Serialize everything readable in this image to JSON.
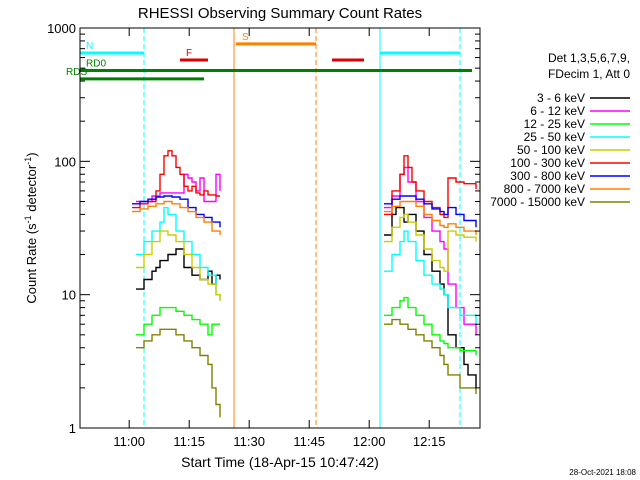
{
  "chart_data": {
    "type": "line",
    "title": "RHESSI Observing Summary Count Rates",
    "xlabel": "Start Time (18-Apr-15 10:47:42)",
    "ylabel": "Count Rate (s",
    "ylabel_sup1": "-1",
    "ylabel_mid": " detector",
    "ylabel_sup2": "-1",
    "ylabel_end": ")",
    "yscale": "log",
    "xlim_minutes": [
      0,
      100
    ],
    "ylim": [
      1,
      1000
    ],
    "xticks": [
      {
        "value": 12.3,
        "label": "11:00"
      },
      {
        "value": 27.3,
        "label": "11:15"
      },
      {
        "value": 42.3,
        "label": "11:30"
      },
      {
        "value": 57.3,
        "label": "11:45"
      },
      {
        "value": 72.3,
        "label": "12:00"
      },
      {
        "value": 87.3,
        "label": "12:15"
      }
    ],
    "yticks": [
      {
        "value": 1,
        "label": "1"
      },
      {
        "value": 10,
        "label": "10"
      },
      {
        "value": 100,
        "label": "100"
      },
      {
        "value": 1000,
        "label": "1000"
      }
    ],
    "legend_position": "right",
    "legend_header": [
      "Det 1,3,5,6,7,9,",
      "FDecim 1, Att 0"
    ],
    "series": [
      {
        "name": "3 - 6 keV",
        "color": "#000000",
        "seg1": [
          [
            14,
            11
          ],
          [
            16,
            13
          ],
          [
            18,
            15
          ],
          [
            19,
            16
          ],
          [
            20,
            18
          ],
          [
            22,
            20
          ],
          [
            24,
            22
          ],
          [
            26,
            16
          ],
          [
            28,
            14
          ],
          [
            30,
            13
          ],
          [
            32,
            15
          ],
          [
            33,
            12
          ],
          [
            34,
            14
          ],
          [
            35,
            13
          ]
        ],
        "seg2": [
          [
            76,
            28
          ],
          [
            78,
            40
          ],
          [
            79,
            45
          ],
          [
            80,
            45
          ],
          [
            81,
            35
          ],
          [
            82,
            40
          ],
          [
            84,
            30
          ],
          [
            86,
            20
          ],
          [
            88,
            15
          ],
          [
            90,
            12
          ],
          [
            91,
            10
          ],
          [
            92,
            5
          ],
          [
            94,
            4
          ],
          [
            96,
            3
          ],
          [
            97,
            2.5
          ],
          [
            99,
            2
          ]
        ]
      },
      {
        "name": "6 - 12 keV",
        "color": "#ff00ff",
        "seg1": [
          [
            14,
            50
          ],
          [
            16,
            50
          ],
          [
            18,
            55
          ],
          [
            20,
            58
          ],
          [
            22,
            58
          ],
          [
            24,
            58
          ],
          [
            26,
            80
          ],
          [
            27,
            75
          ],
          [
            28,
            70
          ],
          [
            29,
            60
          ],
          [
            30,
            75
          ],
          [
            31,
            50
          ],
          [
            32,
            50
          ],
          [
            33,
            50
          ],
          [
            34,
            80
          ],
          [
            35,
            60
          ]
        ],
        "seg2": [
          [
            76,
            45
          ],
          [
            78,
            55
          ],
          [
            80,
            80
          ],
          [
            81,
            90
          ],
          [
            82,
            70
          ],
          [
            84,
            50
          ],
          [
            86,
            38
          ],
          [
            88,
            30
          ],
          [
            90,
            25
          ],
          [
            91,
            22
          ],
          [
            92,
            12
          ],
          [
            94,
            8
          ],
          [
            96,
            6
          ],
          [
            99,
            5
          ]
        ]
      },
      {
        "name": "12 - 25 keV",
        "color": "#00ff00",
        "seg1": [
          [
            14,
            5
          ],
          [
            16,
            6
          ],
          [
            18,
            7
          ],
          [
            20,
            8
          ],
          [
            22,
            8
          ],
          [
            24,
            7.5
          ],
          [
            26,
            7
          ],
          [
            28,
            6.5
          ],
          [
            30,
            6
          ],
          [
            32,
            5
          ],
          [
            33,
            6
          ],
          [
            35,
            6
          ]
        ],
        "seg2": [
          [
            76,
            7
          ],
          [
            78,
            8
          ],
          [
            80,
            9
          ],
          [
            81,
            9.5
          ],
          [
            82,
            8
          ],
          [
            84,
            7
          ],
          [
            86,
            6
          ],
          [
            88,
            5
          ],
          [
            90,
            4.5
          ],
          [
            91,
            4.3
          ],
          [
            92,
            4
          ],
          [
            95,
            3.8
          ],
          [
            99,
            3.5
          ]
        ]
      },
      {
        "name": "25 - 50 keV",
        "color": "#00ffff",
        "seg1": [
          [
            14,
            20
          ],
          [
            16,
            25
          ],
          [
            18,
            30
          ],
          [
            20,
            35
          ],
          [
            21,
            45
          ],
          [
            22,
            40
          ],
          [
            24,
            30
          ],
          [
            26,
            25
          ],
          [
            28,
            20
          ],
          [
            30,
            16
          ],
          [
            32,
            14
          ],
          [
            34,
            10
          ],
          [
            35,
            9
          ]
        ],
        "seg2": [
          [
            76,
            15
          ],
          [
            78,
            20
          ],
          [
            80,
            25
          ],
          [
            81,
            30
          ],
          [
            82,
            25
          ],
          [
            84,
            18
          ],
          [
            86,
            14
          ],
          [
            88,
            12
          ],
          [
            90,
            11
          ],
          [
            91,
            10
          ],
          [
            92,
            8
          ],
          [
            95,
            7
          ],
          [
            99,
            6
          ]
        ]
      },
      {
        "name": "50 - 100 keV",
        "color": "#cccc00",
        "seg1": [
          [
            14,
            16
          ],
          [
            16,
            20
          ],
          [
            18,
            25
          ],
          [
            20,
            30
          ],
          [
            22,
            28
          ],
          [
            24,
            25
          ],
          [
            26,
            20
          ],
          [
            28,
            16
          ],
          [
            30,
            13
          ],
          [
            32,
            12
          ],
          [
            34,
            10
          ],
          [
            35,
            9
          ]
        ],
        "seg2": [
          [
            76,
            25
          ],
          [
            78,
            32
          ],
          [
            80,
            38
          ],
          [
            81,
            40
          ],
          [
            82,
            35
          ],
          [
            84,
            28
          ],
          [
            86,
            22
          ],
          [
            88,
            18
          ],
          [
            90,
            16
          ],
          [
            91,
            15
          ],
          [
            92,
            30
          ],
          [
            94,
            28
          ],
          [
            96,
            27
          ],
          [
            99,
            25
          ]
        ]
      },
      {
        "name": "100 - 300 keV",
        "color": "#ff0000",
        "seg1": [
          [
            13,
            45
          ],
          [
            15,
            48
          ],
          [
            17,
            50
          ],
          [
            19,
            60
          ],
          [
            20,
            80
          ],
          [
            21,
            110
          ],
          [
            22,
            120
          ],
          [
            23,
            110
          ],
          [
            24,
            90
          ],
          [
            25,
            80
          ],
          [
            26,
            65
          ],
          [
            27,
            60
          ],
          [
            28,
            65
          ],
          [
            29,
            58
          ],
          [
            30,
            56
          ],
          [
            31,
            60
          ],
          [
            32,
            56
          ],
          [
            34,
            55
          ],
          [
            35,
            55
          ]
        ],
        "seg2": [
          [
            76,
            40
          ],
          [
            78,
            60
          ],
          [
            80,
            80
          ],
          [
            81,
            110
          ],
          [
            82,
            90
          ],
          [
            83,
            70
          ],
          [
            84,
            60
          ],
          [
            86,
            50
          ],
          [
            88,
            45
          ],
          [
            90,
            40
          ],
          [
            91,
            38
          ],
          [
            92,
            75
          ],
          [
            94,
            70
          ],
          [
            96,
            68
          ],
          [
            99,
            62
          ]
        ]
      },
      {
        "name": "300 - 800 keV",
        "color": "#0000ff",
        "seg1": [
          [
            13,
            48
          ],
          [
            15,
            50
          ],
          [
            17,
            52
          ],
          [
            19,
            54
          ],
          [
            21,
            55
          ],
          [
            23,
            54
          ],
          [
            25,
            52
          ],
          [
            27,
            45
          ],
          [
            29,
            40
          ],
          [
            31,
            38
          ],
          [
            33,
            35
          ],
          [
            35,
            32
          ]
        ],
        "seg2": [
          [
            76,
            48
          ],
          [
            78,
            52
          ],
          [
            80,
            55
          ],
          [
            82,
            55
          ],
          [
            84,
            52
          ],
          [
            86,
            48
          ],
          [
            88,
            44
          ],
          [
            90,
            42
          ],
          [
            91,
            40
          ],
          [
            92,
            45
          ],
          [
            94,
            40
          ],
          [
            96,
            36
          ],
          [
            99,
            32
          ]
        ]
      },
      {
        "name": "800 - 7000 keV",
        "color": "#ff8000",
        "seg1": [
          [
            13,
            42
          ],
          [
            15,
            44
          ],
          [
            17,
            46
          ],
          [
            19,
            48
          ],
          [
            21,
            50
          ],
          [
            23,
            48
          ],
          [
            25,
            45
          ],
          [
            27,
            42
          ],
          [
            29,
            38
          ],
          [
            31,
            35
          ],
          [
            33,
            30
          ],
          [
            35,
            28
          ]
        ],
        "seg2": [
          [
            76,
            42
          ],
          [
            78,
            46
          ],
          [
            80,
            50
          ],
          [
            82,
            50
          ],
          [
            84,
            46
          ],
          [
            86,
            40
          ],
          [
            88,
            36
          ],
          [
            90,
            33
          ],
          [
            91,
            32
          ],
          [
            92,
            34
          ],
          [
            94,
            32
          ],
          [
            96,
            30
          ],
          [
            99,
            28
          ]
        ]
      },
      {
        "name": "7000 - 15000 keV",
        "color": "#808000",
        "seg1": [
          [
            14,
            4
          ],
          [
            16,
            4.5
          ],
          [
            18,
            5
          ],
          [
            20,
            5.5
          ],
          [
            22,
            5.5
          ],
          [
            24,
            5
          ],
          [
            26,
            4.5
          ],
          [
            28,
            4
          ],
          [
            30,
            3.5
          ],
          [
            32,
            3
          ],
          [
            33,
            2
          ],
          [
            34,
            1.5
          ],
          [
            35,
            1.2
          ]
        ],
        "seg2": [
          [
            76,
            6
          ],
          [
            78,
            6.5
          ],
          [
            80,
            6
          ],
          [
            82,
            5.5
          ],
          [
            84,
            5
          ],
          [
            86,
            4.5
          ],
          [
            88,
            4
          ],
          [
            90,
            3.5
          ],
          [
            91,
            3
          ],
          [
            92,
            2.5
          ],
          [
            95,
            2
          ],
          [
            99,
            1.8
          ]
        ]
      }
    ],
    "state_bars": [
      {
        "label": "N",
        "color": "#00ffff",
        "y_level": 650,
        "segments": [
          [
            0,
            16
          ],
          [
            75,
            95
          ]
        ]
      },
      {
        "label": "F",
        "color": "#dd0000",
        "y_level": 575,
        "segments": [
          [
            25,
            32
          ],
          [
            63,
            71
          ]
        ]
      },
      {
        "label": "S",
        "color": "#ff8000",
        "y_level": 760,
        "segments": [
          [
            39,
            59
          ]
        ]
      },
      {
        "label": "RD0",
        "color": "#008000",
        "y_level": 480,
        "segments": [
          [
            0,
            31
          ],
          [
            31,
            59
          ],
          [
            59,
            74
          ],
          [
            74,
            98
          ]
        ]
      },
      {
        "label": "RDS",
        "color": "#008000",
        "y_level": 415,
        "segments": [
          [
            0,
            31
          ]
        ]
      }
    ],
    "vlines": [
      {
        "x": 0,
        "color": "#00ffff",
        "dash": false
      },
      {
        "x": 16,
        "color": "#00ffff",
        "dash": true
      },
      {
        "x": 38.5,
        "color": "#ff8000",
        "dash": false
      },
      {
        "x": 59,
        "color": "#ff8000",
        "dash": true
      },
      {
        "x": 75,
        "color": "#00ffff",
        "dash": false
      },
      {
        "x": 95,
        "color": "#00ffff",
        "dash": true
      }
    ],
    "footer_date": "28-Oct-2021 18:08"
  }
}
